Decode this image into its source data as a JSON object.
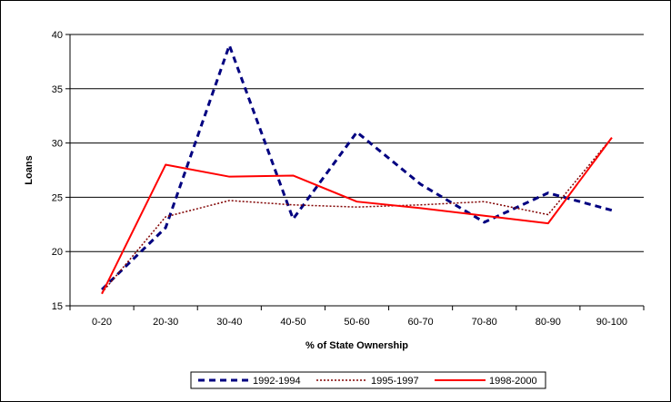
{
  "chart_data": {
    "type": "line",
    "title": "",
    "xlabel": "% of State Ownership",
    "ylabel": "Loans",
    "categories": [
      "0-20",
      "20-30",
      "30-40",
      "40-50",
      "50-60",
      "60-70",
      "70-80",
      "80-90",
      "90-100"
    ],
    "ylim": [
      15,
      40
    ],
    "yticks": [
      15,
      20,
      25,
      30,
      35,
      40
    ],
    "grid": true,
    "legend_position": "bottom",
    "series": [
      {
        "name": "1992-1994",
        "color": "#000080",
        "style": "dashed",
        "values": [
          16.5,
          22.2,
          39.0,
          23.0,
          31.0,
          26.2,
          22.7,
          25.4,
          23.8
        ]
      },
      {
        "name": "1995-1997",
        "color": "#800000",
        "style": "dotted",
        "values": [
          16.2,
          23.2,
          24.7,
          24.3,
          24.1,
          24.3,
          24.6,
          23.4,
          30.5
        ]
      },
      {
        "name": "1998-2000",
        "color": "#ff0000",
        "style": "solid",
        "values": [
          16.1,
          28.0,
          26.9,
          27.0,
          24.6,
          24.0,
          23.3,
          22.6,
          30.5
        ]
      }
    ]
  }
}
